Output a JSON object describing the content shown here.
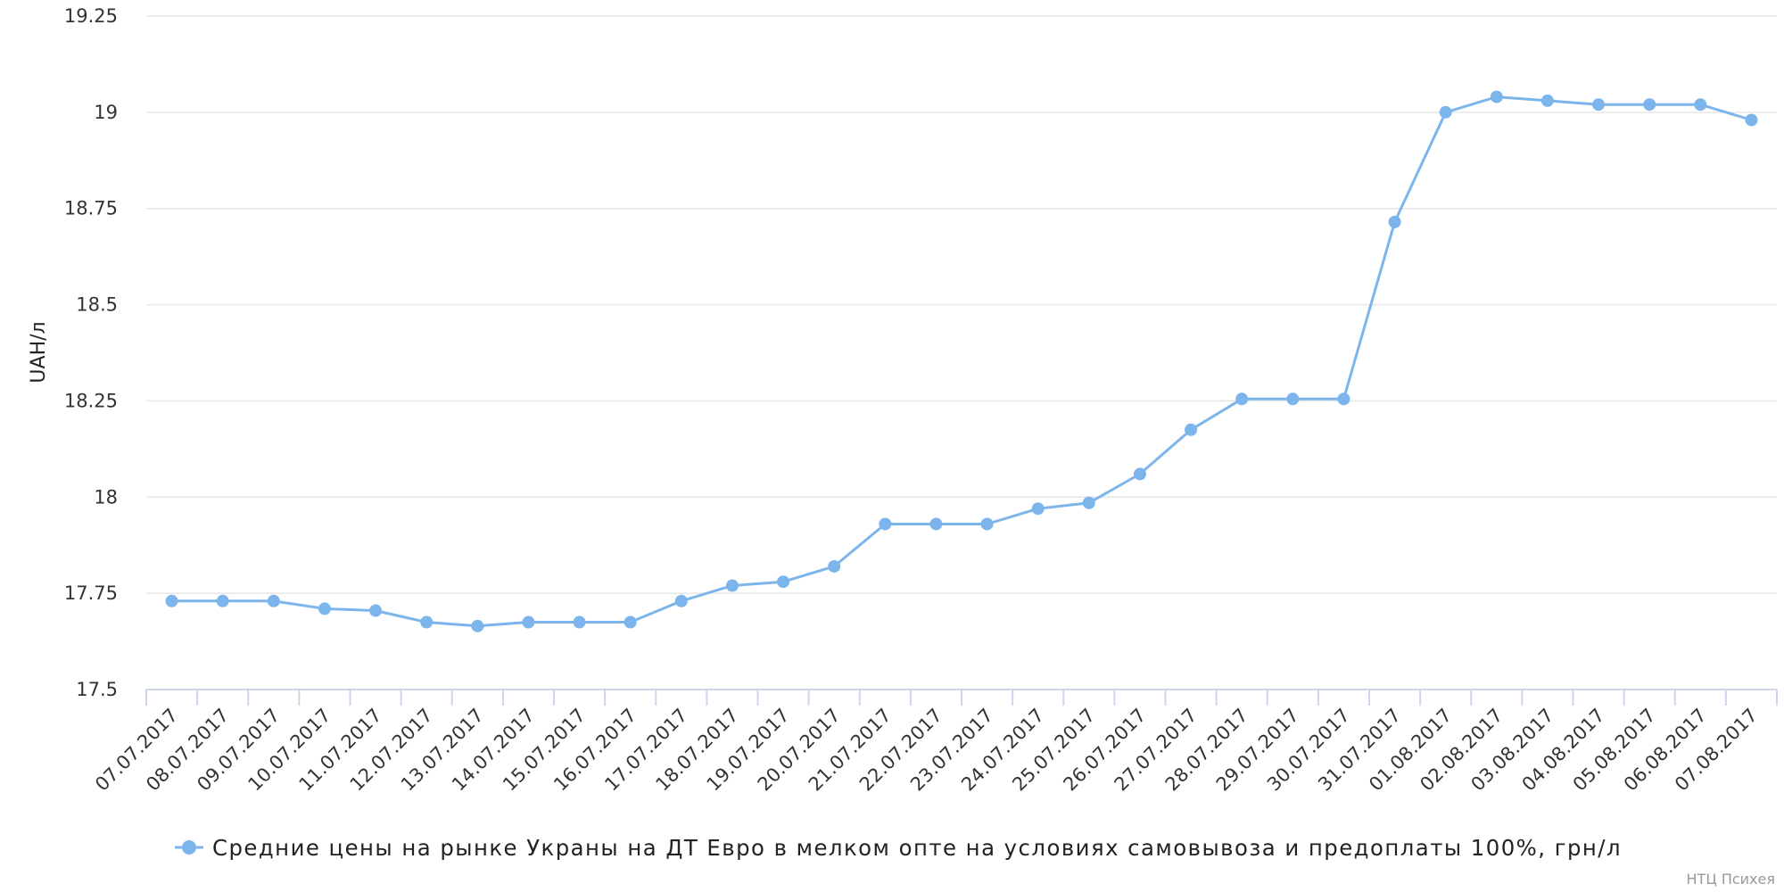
{
  "chart_data": {
    "type": "line",
    "title": "",
    "xlabel": "",
    "ylabel": "UAH/л",
    "ylim": [
      17.5,
      19.25
    ],
    "yticks": [
      "17.5",
      "17.75",
      "18",
      "18.25",
      "18.5",
      "18.75",
      "19",
      "19.25"
    ],
    "grid": true,
    "legend_position": "bottom",
    "colors": {
      "series": "#7cb5ec",
      "grid": "#e6e6e6",
      "axis": "#ccd6eb"
    },
    "categories": [
      "07.07.2017",
      "08.07.2017",
      "09.07.2017",
      "10.07.2017",
      "11.07.2017",
      "12.07.2017",
      "13.07.2017",
      "14.07.2017",
      "15.07.2017",
      "16.07.2017",
      "17.07.2017",
      "18.07.2017",
      "19.07.2017",
      "20.07.2017",
      "21.07.2017",
      "22.07.2017",
      "23.07.2017",
      "24.07.2017",
      "25.07.2017",
      "26.07.2017",
      "27.07.2017",
      "28.07.2017",
      "29.07.2017",
      "30.07.2017",
      "31.07.2017",
      "01.08.2017",
      "02.08.2017",
      "03.08.2017",
      "04.08.2017",
      "05.08.2017",
      "06.08.2017",
      "07.08.2017"
    ],
    "series": [
      {
        "name": "Средние цены на рынке Украны на ДТ Евро в мелком опте на условиях самовывоза и предоплаты 100%, грн/л",
        "values": [
          17.73,
          17.73,
          17.73,
          17.71,
          17.705,
          17.675,
          17.665,
          17.675,
          17.675,
          17.675,
          17.73,
          17.77,
          17.78,
          17.82,
          17.93,
          17.93,
          17.93,
          17.97,
          17.985,
          18.06,
          18.175,
          18.255,
          18.255,
          18.255,
          18.715,
          19.0,
          19.04,
          19.03,
          19.02,
          19.02,
          19.02,
          18.98
        ]
      }
    ]
  },
  "credit": "НТЦ Психея"
}
